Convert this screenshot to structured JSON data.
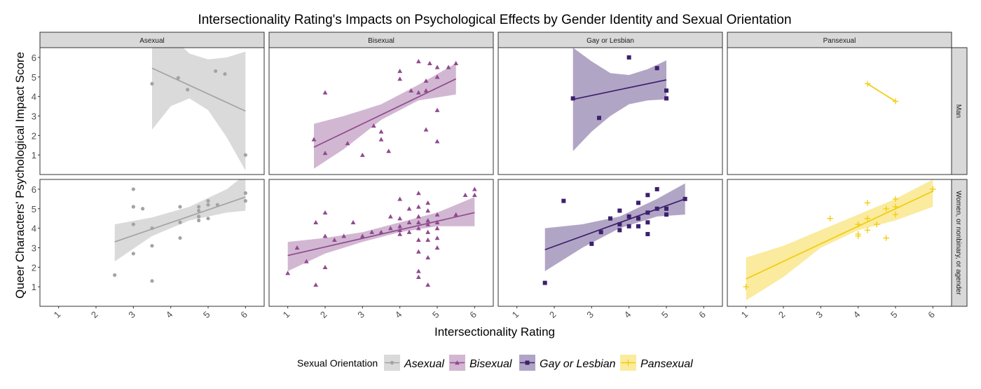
{
  "chart_data": {
    "type": "scatter",
    "title": "Intersectionality Rating's Impacts on Psychological Effects by Gender Identity and Sexual Orientation",
    "xlabel": "Intersectionality Rating",
    "ylabel": "Queer Characters' Psychological Impact Score",
    "xlim": [
      0.5,
      6.5
    ],
    "ylim": [
      0,
      6.5
    ],
    "x_ticks": [
      "1",
      "2",
      "3",
      "4",
      "5",
      "6"
    ],
    "y_ticks": [
      "1",
      "2",
      "3",
      "4",
      "5",
      "6"
    ],
    "grid": false,
    "facet_columns": [
      "Asexual",
      "Bisexual",
      "Gay or Lesbian",
      "Pansexual"
    ],
    "facet_rows": [
      "Man",
      "Women, or nonbinary, or agender"
    ],
    "legend": {
      "title": "Sexual Orientation",
      "position": "bottom",
      "entries": [
        {
          "name": "Asexual",
          "color": "#a3a3a3",
          "marker": "circle"
        },
        {
          "name": "Bisexual",
          "color": "#8f4a8f",
          "marker": "triangle"
        },
        {
          "name": "Gay or Lesbian",
          "color": "#3d1f6e",
          "marker": "square"
        },
        {
          "name": "Pansexual",
          "color": "#f2cc0c",
          "marker": "plus"
        }
      ]
    },
    "panels": [
      {
        "row": "Man",
        "col": "Asexual",
        "series": "Asexual",
        "points": [
          [
            3.5,
            4.65
          ],
          [
            4.2,
            4.95
          ],
          [
            4.45,
            4.35
          ],
          [
            5.2,
            5.3
          ],
          [
            5.45,
            5.15
          ],
          [
            6.0,
            1.0
          ]
        ],
        "fit": {
          "x": [
            3.5,
            6.0
          ],
          "y": [
            5.45,
            3.25
          ]
        },
        "band": {
          "x": [
            3.5,
            4.0,
            4.5,
            5.0,
            5.5,
            6.0
          ],
          "upper": [
            8.6,
            7.1,
            6.2,
            5.9,
            6.0,
            6.3
          ],
          "lower": [
            2.3,
            3.5,
            3.9,
            3.3,
            1.9,
            0.2
          ]
        }
      },
      {
        "row": "Man",
        "col": "Bisexual",
        "series": "Bisexual",
        "points": [
          [
            1.7,
            1.8
          ],
          [
            2.0,
            4.2
          ],
          [
            2.0,
            1.1
          ],
          [
            2.6,
            1.6
          ],
          [
            3.0,
            1.0
          ],
          [
            3.3,
            2.5
          ],
          [
            3.5,
            2.2
          ],
          [
            3.5,
            1.8
          ],
          [
            3.7,
            1.2
          ],
          [
            4.0,
            5.3
          ],
          [
            4.0,
            4.9
          ],
          [
            4.3,
            4.3
          ],
          [
            4.5,
            5.8
          ],
          [
            4.5,
            4.2
          ],
          [
            4.7,
            4.8
          ],
          [
            4.7,
            4.3
          ],
          [
            4.7,
            2.3
          ],
          [
            4.8,
            5.7
          ],
          [
            5.0,
            5.5
          ],
          [
            5.0,
            5.0
          ],
          [
            5.0,
            3.3
          ],
          [
            5.0,
            1.7
          ],
          [
            5.3,
            5.5
          ],
          [
            5.5,
            5.7
          ]
        ],
        "fit": {
          "x": [
            1.7,
            5.5
          ],
          "y": [
            1.4,
            4.9
          ]
        },
        "band": {
          "x": [
            1.7,
            2.5,
            3.5,
            4.5,
            5.5
          ],
          "upper": [
            2.6,
            3.0,
            3.6,
            4.6,
            5.7
          ],
          "lower": [
            0.3,
            1.3,
            2.8,
            3.8,
            4.1
          ]
        }
      },
      {
        "row": "Man",
        "col": "Gay or Lesbian",
        "series": "Gay or Lesbian",
        "points": [
          [
            2.5,
            3.9
          ],
          [
            3.2,
            2.9
          ],
          [
            4.0,
            6.0
          ],
          [
            4.75,
            5.45
          ],
          [
            5.0,
            4.3
          ],
          [
            5.0,
            3.9
          ]
        ],
        "fit": {
          "x": [
            2.5,
            5.0
          ],
          "y": [
            3.85,
            4.85
          ]
        },
        "band": {
          "x": [
            2.5,
            3.0,
            3.5,
            4.0,
            4.5,
            5.0
          ],
          "upper": [
            6.5,
            5.8,
            5.2,
            5.1,
            5.4,
            5.85
          ],
          "lower": [
            1.2,
            2.2,
            3.0,
            3.6,
            3.8,
            3.85
          ]
        }
      },
      {
        "row": "Man",
        "col": "Pansexual",
        "series": "Pansexual",
        "points": [
          [
            4.25,
            4.65
          ],
          [
            5.0,
            3.75
          ]
        ],
        "fit": {
          "x": [
            4.25,
            5.0
          ],
          "y": [
            4.65,
            3.75
          ]
        },
        "band": null
      },
      {
        "row": "Women, or nonbinary, or agender",
        "col": "Asexual",
        "series": "Asexual",
        "points": [
          [
            2.5,
            1.6
          ],
          [
            3.0,
            6.0
          ],
          [
            3.0,
            5.1
          ],
          [
            3.0,
            4.2
          ],
          [
            3.0,
            2.7
          ],
          [
            3.25,
            5.0
          ],
          [
            3.5,
            4.0
          ],
          [
            3.5,
            3.1
          ],
          [
            3.5,
            1.3
          ],
          [
            4.25,
            5.1
          ],
          [
            4.25,
            4.3
          ],
          [
            4.25,
            3.5
          ],
          [
            4.75,
            5.1
          ],
          [
            4.75,
            4.9
          ],
          [
            4.75,
            4.6
          ],
          [
            4.75,
            4.4
          ],
          [
            5.0,
            5.4
          ],
          [
            5.0,
            5.2
          ],
          [
            5.0,
            4.5
          ],
          [
            5.25,
            5.2
          ],
          [
            6.0,
            5.8
          ],
          [
            6.0,
            5.4
          ]
        ],
        "fit": {
          "x": [
            2.5,
            6.0
          ],
          "y": [
            3.3,
            5.6
          ]
        },
        "band": {
          "x": [
            2.5,
            3.5,
            4.5,
            5.5,
            6.0
          ],
          "upper": [
            4.2,
            4.55,
            5.1,
            6.0,
            6.75
          ],
          "lower": [
            2.3,
            3.6,
            4.4,
            4.8,
            4.9
          ]
        }
      },
      {
        "row": "Women, or nonbinary, or agender",
        "col": "Bisexual",
        "series": "Bisexual",
        "points": [
          [
            1.0,
            1.7
          ],
          [
            1.25,
            3.0
          ],
          [
            1.5,
            2.3
          ],
          [
            1.75,
            4.3
          ],
          [
            1.75,
            1.1
          ],
          [
            2.0,
            4.8
          ],
          [
            2.0,
            3.6
          ],
          [
            2.0,
            2.0
          ],
          [
            2.25,
            3.4
          ],
          [
            2.5,
            3.6
          ],
          [
            2.75,
            4.3
          ],
          [
            3.0,
            3.6
          ],
          [
            3.25,
            3.8
          ],
          [
            3.5,
            3.8
          ],
          [
            3.75,
            4.6
          ],
          [
            3.75,
            4.0
          ],
          [
            4.0,
            5.5
          ],
          [
            4.0,
            4.5
          ],
          [
            4.0,
            4.1
          ],
          [
            4.0,
            3.9
          ],
          [
            4.0,
            3.7
          ],
          [
            4.25,
            5.0
          ],
          [
            4.25,
            4.3
          ],
          [
            4.25,
            3.8
          ],
          [
            4.5,
            5.8
          ],
          [
            4.5,
            5.1
          ],
          [
            4.5,
            4.6
          ],
          [
            4.5,
            4.3
          ],
          [
            4.5,
            4.0
          ],
          [
            4.5,
            3.4
          ],
          [
            4.5,
            2.8
          ],
          [
            4.5,
            1.8
          ],
          [
            4.5,
            1.5
          ],
          [
            4.75,
            5.3
          ],
          [
            4.75,
            4.9
          ],
          [
            4.75,
            4.4
          ],
          [
            4.75,
            4.2
          ],
          [
            4.75,
            3.8
          ],
          [
            4.75,
            3.4
          ],
          [
            4.75,
            2.5
          ],
          [
            4.75,
            1.1
          ],
          [
            5.0,
            4.7
          ],
          [
            5.0,
            4.3
          ],
          [
            5.0,
            4.0
          ],
          [
            5.0,
            3.5
          ],
          [
            5.0,
            3.0
          ],
          [
            5.5,
            4.7
          ],
          [
            5.75,
            5.7
          ],
          [
            6.0,
            6.0
          ],
          [
            6.0,
            5.7
          ]
        ],
        "fit": {
          "x": [
            1.0,
            6.0
          ],
          "y": [
            2.6,
            4.8
          ]
        },
        "band": {
          "x": [
            1.0,
            2.0,
            3.0,
            4.0,
            5.0,
            6.0
          ],
          "upper": [
            3.3,
            3.5,
            3.8,
            4.3,
            4.8,
            5.6
          ],
          "lower": [
            1.8,
            2.7,
            3.3,
            3.8,
            4.1,
            4.1
          ]
        }
      },
      {
        "row": "Women, or nonbinary, or agender",
        "col": "Gay or Lesbian",
        "series": "Gay or Lesbian",
        "points": [
          [
            1.75,
            1.2
          ],
          [
            2.25,
            5.4
          ],
          [
            3.0,
            3.2
          ],
          [
            3.25,
            3.8
          ],
          [
            3.5,
            4.5
          ],
          [
            3.75,
            4.9
          ],
          [
            3.75,
            4.2
          ],
          [
            3.75,
            3.9
          ],
          [
            4.0,
            4.6
          ],
          [
            4.0,
            4.1
          ],
          [
            4.25,
            5.3
          ],
          [
            4.25,
            4.5
          ],
          [
            4.25,
            4.1
          ],
          [
            4.5,
            5.7
          ],
          [
            4.5,
            4.8
          ],
          [
            4.5,
            4.3
          ],
          [
            4.5,
            3.7
          ],
          [
            4.75,
            6.0
          ],
          [
            4.75,
            5.0
          ],
          [
            5.0,
            5.0
          ],
          [
            5.0,
            4.7
          ],
          [
            5.5,
            5.5
          ]
        ],
        "fit": {
          "x": [
            1.75,
            5.5
          ],
          "y": [
            2.9,
            5.5
          ]
        },
        "band": {
          "x": [
            1.75,
            2.75,
            3.75,
            4.75,
            5.5
          ],
          "upper": [
            4.0,
            4.2,
            4.6,
            5.5,
            6.3
          ],
          "lower": [
            1.8,
            3.0,
            4.0,
            4.6,
            4.7
          ]
        }
      },
      {
        "row": "Women, or nonbinary, or agender",
        "col": "Pansexual",
        "series": "Pansexual",
        "points": [
          [
            1.0,
            1.0
          ],
          [
            3.25,
            4.5
          ],
          [
            4.0,
            4.2
          ],
          [
            4.0,
            3.7
          ],
          [
            4.0,
            3.6
          ],
          [
            4.25,
            5.3
          ],
          [
            4.25,
            4.5
          ],
          [
            4.25,
            3.9
          ],
          [
            4.5,
            4.2
          ],
          [
            4.75,
            5.0
          ],
          [
            4.75,
            3.5
          ],
          [
            5.0,
            5.5
          ],
          [
            5.0,
            5.1
          ],
          [
            5.0,
            4.7
          ],
          [
            6.0,
            6.0
          ]
        ],
        "fit": {
          "x": [
            1.0,
            6.0
          ],
          "y": [
            1.4,
            5.9
          ]
        },
        "band": {
          "x": [
            1.0,
            2.0,
            3.0,
            4.0,
            5.0,
            6.0
          ],
          "upper": [
            2.5,
            3.1,
            3.9,
            4.7,
            5.5,
            6.5
          ],
          "lower": [
            0.3,
            1.5,
            3.0,
            3.9,
            4.4,
            5.1
          ]
        }
      }
    ]
  }
}
